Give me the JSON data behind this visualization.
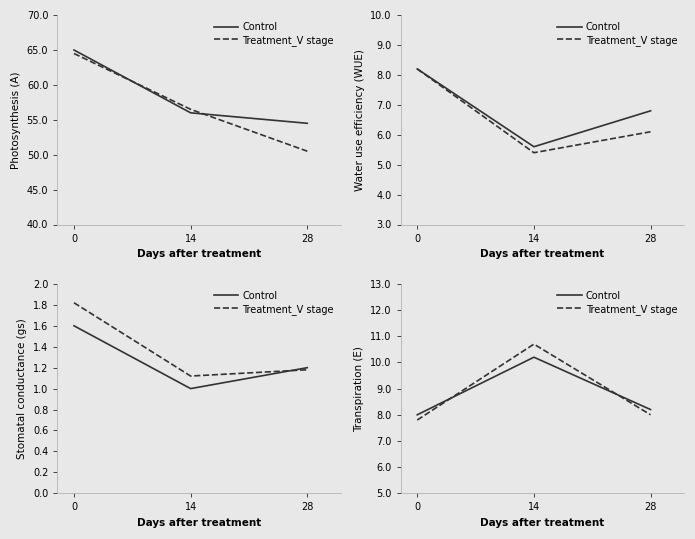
{
  "x": [
    0,
    14,
    28
  ],
  "plots": [
    {
      "ylabel": "Photosynthesis (A)",
      "xlabel": "Days after treatment",
      "ylim": [
        40.0,
        70.0
      ],
      "yticks": [
        40.0,
        45.0,
        50.0,
        55.0,
        60.0,
        65.0,
        70.0
      ],
      "control": [
        65.0,
        56.0,
        54.5
      ],
      "treatment": [
        64.5,
        56.5,
        50.5
      ]
    },
    {
      "ylabel": "Water use efficiency (WUE)",
      "xlabel": "Days after treatment",
      "ylim": [
        3.0,
        10.0
      ],
      "yticks": [
        3.0,
        4.0,
        5.0,
        6.0,
        7.0,
        8.0,
        9.0,
        10.0
      ],
      "control": [
        8.2,
        5.6,
        6.8
      ],
      "treatment": [
        8.2,
        5.4,
        6.1
      ]
    },
    {
      "ylabel": "Stomatal conductance (gs)",
      "xlabel": "Days after treatment",
      "ylim": [
        0.0,
        2.0
      ],
      "yticks": [
        0.0,
        0.2,
        0.4,
        0.6,
        0.8,
        1.0,
        1.2,
        1.4,
        1.6,
        1.8,
        2.0
      ],
      "control": [
        1.6,
        1.0,
        1.2
      ],
      "treatment": [
        1.82,
        1.12,
        1.18
      ]
    },
    {
      "ylabel": "Transpiration (E)",
      "xlabel": "Days after treatment",
      "ylim": [
        5.0,
        13.0
      ],
      "yticks": [
        5.0,
        6.0,
        7.0,
        8.0,
        9.0,
        10.0,
        11.0,
        12.0,
        13.0
      ],
      "control": [
        8.0,
        10.2,
        8.2
      ],
      "treatment": [
        7.8,
        10.7,
        8.0
      ]
    }
  ],
  "legend_labels": [
    "Control",
    "Treatment_V stage"
  ],
  "control_style": {
    "color": "#333333",
    "linestyle": "-",
    "linewidth": 1.2
  },
  "treatment_style": {
    "color": "#333333",
    "linestyle": "--",
    "linewidth": 1.2
  },
  "xticks": [
    0,
    14,
    28
  ],
  "xlabel_fontsize": 7.5,
  "ylabel_fontsize": 7.5,
  "tick_fontsize": 7,
  "legend_fontsize": 7,
  "fig_facecolor": "#e8e8e8"
}
